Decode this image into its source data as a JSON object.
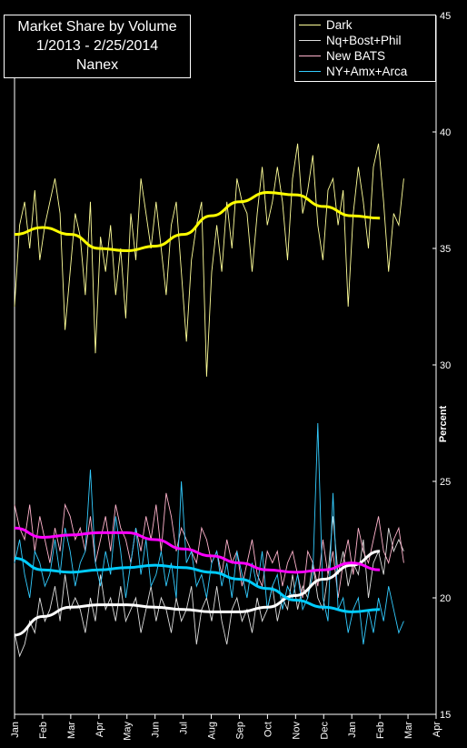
{
  "chart_data": {
    "type": "line",
    "title": [
      "Market Share by Volume",
      "1/2013 - 2/25/2014",
      "Nanex"
    ],
    "ylabel": "Percent",
    "xlabel": "",
    "ylim": [
      15,
      45
    ],
    "yticks": [
      "15",
      "20",
      "25",
      "30",
      "35",
      "40",
      "45"
    ],
    "xticks": [
      "Jan",
      "Feb",
      "Mar",
      "Apr",
      "May",
      "Jun",
      "Jul",
      "Aug",
      "Sep",
      "Oct",
      "Nov",
      "Dec",
      "Jan",
      "Feb",
      "Mar",
      "Apr"
    ],
    "legend_position": "top-right",
    "grid": false,
    "series": [
      {
        "name": "Dark",
        "color": "#ffff99",
        "trend_color": "#ffff00",
        "values": [
          32.5,
          36.0,
          37.0,
          35.0,
          37.5,
          34.5,
          36.0,
          37.0,
          38.0,
          36.5,
          31.5,
          34.0,
          36.5,
          35.5,
          33.0,
          37.0,
          30.5,
          35.5,
          34.0,
          36.0,
          33.0,
          35.0,
          32.0,
          36.5,
          34.5,
          38.0,
          36.5,
          35.0,
          37.0,
          35.0,
          33.0,
          36.0,
          37.0,
          34.0,
          31.0,
          34.5,
          36.0,
          37.0,
          29.5,
          34.0,
          36.0,
          34.0,
          37.0,
          35.0,
          38.0,
          37.0,
          36.5,
          34.0,
          36.5,
          38.5,
          36.0,
          37.0,
          38.5,
          37.0,
          34.5,
          38.0,
          39.5,
          36.5,
          37.5,
          39.0,
          36.0,
          34.5,
          37.5,
          38.0,
          36.0,
          37.5,
          32.5,
          36.5,
          38.5,
          37.0,
          35.0,
          38.5,
          39.5,
          37.0,
          34.0,
          36.5,
          36.0,
          38.0
        ],
        "trend": [
          [
            0,
            35.6
          ],
          [
            1,
            35.9
          ],
          [
            2,
            35.6
          ],
          [
            3,
            35.0
          ],
          [
            4,
            34.9
          ],
          [
            5,
            35.1
          ],
          [
            6,
            35.6
          ],
          [
            7,
            36.4
          ],
          [
            8,
            37.0
          ],
          [
            9,
            37.4
          ],
          [
            10,
            37.3
          ],
          [
            11,
            36.8
          ],
          [
            12,
            36.4
          ],
          [
            13,
            36.3
          ]
        ]
      },
      {
        "name": "Nq+Bost+Phil",
        "color": "#dddddd",
        "trend_color": "#ffffff",
        "values": [
          18.5,
          17.5,
          18.0,
          19.0,
          18.5,
          20.0,
          19.0,
          19.5,
          20.5,
          19.0,
          21.0,
          19.5,
          20.0,
          19.5,
          18.5,
          20.0,
          19.0,
          21.0,
          19.5,
          20.0,
          19.0,
          20.5,
          19.0,
          19.5,
          20.0,
          18.5,
          19.5,
          20.5,
          19.0,
          20.0,
          19.5,
          18.5,
          20.0,
          19.0,
          19.5,
          20.5,
          18.0,
          19.5,
          20.0,
          19.0,
          20.5,
          19.0,
          18.0,
          19.5,
          20.0,
          19.0,
          19.5,
          18.5,
          20.0,
          19.0,
          19.5,
          20.5,
          19.0,
          20.0,
          19.5,
          21.0,
          19.5,
          20.5,
          20.0,
          21.5,
          20.0,
          19.5,
          21.0,
          23.5,
          21.0,
          22.0,
          20.5,
          21.5,
          21.0,
          22.5,
          20.0,
          21.5,
          22.0,
          21.0,
          23.0,
          22.0,
          22.5,
          22.0
        ],
        "trend": [
          [
            0,
            18.4
          ],
          [
            1,
            19.2
          ],
          [
            2,
            19.6
          ],
          [
            3,
            19.7
          ],
          [
            4,
            19.7
          ],
          [
            5,
            19.6
          ],
          [
            6,
            19.5
          ],
          [
            7,
            19.4
          ],
          [
            8,
            19.4
          ],
          [
            9,
            19.6
          ],
          [
            10,
            20.1
          ],
          [
            11,
            20.8
          ],
          [
            12,
            21.4
          ],
          [
            13,
            22.0
          ]
        ]
      },
      {
        "name": "New BATS",
        "color": "#ffb3cc",
        "trend_color": "#ff00ff",
        "values": [
          24.0,
          23.0,
          22.5,
          24.0,
          22.0,
          23.5,
          22.5,
          21.5,
          23.0,
          22.0,
          24.0,
          23.5,
          22.5,
          23.0,
          22.0,
          23.5,
          21.5,
          22.5,
          23.5,
          22.0,
          24.0,
          23.0,
          22.5,
          21.5,
          23.0,
          22.0,
          23.5,
          22.5,
          24.0,
          22.0,
          24.5,
          23.5,
          22.0,
          23.0,
          22.5,
          22.0,
          21.5,
          23.0,
          22.5,
          21.5,
          22.0,
          21.0,
          22.5,
          21.5,
          22.0,
          20.5,
          21.5,
          22.5,
          21.0,
          20.5,
          22.0,
          21.5,
          22.0,
          20.5,
          21.5,
          22.0,
          21.0,
          20.0,
          22.0,
          21.5,
          20.5,
          22.5,
          21.0,
          22.0,
          20.0,
          21.5,
          22.5,
          21.0,
          23.0,
          22.0,
          21.5,
          22.5,
          23.5,
          22.0,
          21.5,
          22.5,
          23.0,
          21.5
        ],
        "trend": [
          [
            0,
            23.0
          ],
          [
            1,
            22.6
          ],
          [
            2,
            22.7
          ],
          [
            3,
            22.8
          ],
          [
            4,
            22.8
          ],
          [
            5,
            22.5
          ],
          [
            6,
            22.1
          ],
          [
            7,
            21.8
          ],
          [
            8,
            21.5
          ],
          [
            9,
            21.2
          ],
          [
            10,
            21.1
          ],
          [
            11,
            21.2
          ],
          [
            12,
            21.5
          ],
          [
            13,
            21.2
          ]
        ]
      },
      {
        "name": "NY+Amx+Arca",
        "color": "#33ccff",
        "trend_color": "#00ccff",
        "values": [
          21.5,
          22.5,
          21.0,
          20.0,
          22.0,
          21.5,
          20.5,
          21.0,
          22.5,
          21.0,
          23.0,
          22.0,
          20.5,
          21.5,
          22.0,
          25.5,
          21.5,
          20.5,
          22.0,
          21.0,
          23.5,
          22.0,
          20.0,
          21.5,
          23.0,
          21.0,
          22.5,
          20.5,
          21.0,
          22.0,
          20.5,
          21.5,
          20.0,
          25.0,
          21.5,
          22.0,
          20.5,
          21.0,
          20.0,
          21.5,
          22.0,
          20.5,
          21.5,
          20.0,
          22.0,
          21.0,
          20.0,
          21.5,
          20.5,
          22.0,
          19.5,
          20.5,
          21.0,
          19.5,
          20.5,
          20.0,
          21.0,
          19.5,
          20.0,
          21.0,
          27.5,
          20.0,
          19.0,
          24.5,
          19.5,
          20.0,
          18.5,
          19.5,
          20.0,
          18.0,
          19.5,
          18.5,
          20.0,
          19.0,
          20.5,
          19.5,
          18.5,
          19.0
        ],
        "trend": [
          [
            0,
            21.7
          ],
          [
            1,
            21.2
          ],
          [
            2,
            21.1
          ],
          [
            3,
            21.2
          ],
          [
            4,
            21.3
          ],
          [
            5,
            21.4
          ],
          [
            6,
            21.3
          ],
          [
            7,
            21.1
          ],
          [
            8,
            20.8
          ],
          [
            9,
            20.4
          ],
          [
            10,
            19.9
          ],
          [
            11,
            19.6
          ],
          [
            12,
            19.4
          ],
          [
            13,
            19.5
          ]
        ]
      }
    ]
  }
}
